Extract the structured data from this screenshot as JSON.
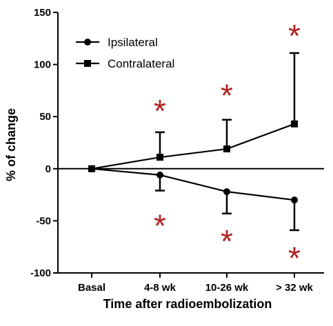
{
  "chart_data": {
    "type": "line",
    "xlabel": "Time after radioembolization",
    "ylabel": "% of change",
    "categories": [
      "Basal",
      "4-8 wk",
      "10-26 wk",
      "> 32 wk"
    ],
    "ylim": [
      -100,
      150
    ],
    "yticks": [
      -100,
      -50,
      0,
      50,
      100,
      150
    ],
    "series": [
      {
        "name": "Ipsilateral",
        "marker": "circle",
        "values": [
          0,
          -6,
          -22,
          -30
        ],
        "error_low": [
          null,
          -21,
          -43,
          -59
        ]
      },
      {
        "name": "Contralateral",
        "marker": "square",
        "values": [
          0,
          11,
          19,
          43
        ],
        "error_high": [
          null,
          35,
          47,
          111
        ]
      }
    ],
    "annotations": [
      {
        "text": "*",
        "category": "4-8 wk",
        "y": 58
      },
      {
        "text": "*",
        "category": "10-26 wk",
        "y": 73
      },
      {
        "text": "*",
        "category": "> 32 wk",
        "y": 130
      },
      {
        "text": "*",
        "category": "4-8 wk",
        "y": -52
      },
      {
        "text": "*",
        "category": "10-26 wk",
        "y": -67
      },
      {
        "text": "*",
        "category": "> 32 wk",
        "y": -83
      }
    ],
    "annotation_color": "#b22222",
    "line_color": "#000000",
    "zero_line": true,
    "grid": false,
    "legend_position": "top-left"
  }
}
